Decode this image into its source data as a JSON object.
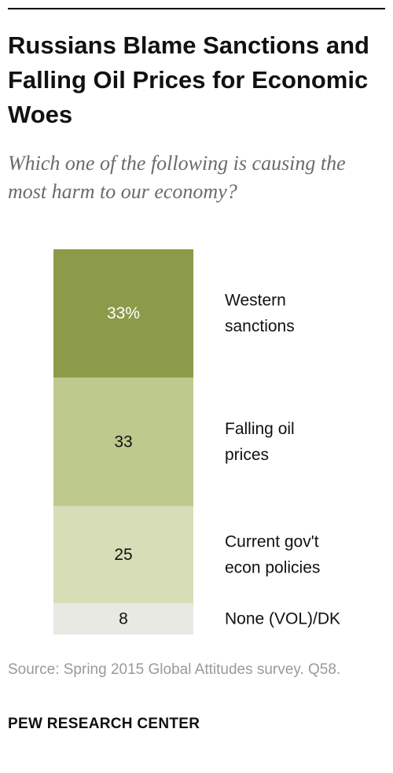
{
  "title": "Russians Blame Sanctions and Falling Oil Prices for Economic Woes",
  "subtitle": "Which one of the following is causing the most harm to our economy?",
  "source": "Source: Spring 2015 Global Attitudes survey. Q58.",
  "footer": "PEW RESEARCH CENTER",
  "chart_data": {
    "type": "bar",
    "stacked": true,
    "orientation": "vertical-stack",
    "categories": [
      "Western sanctions",
      "Falling oil prices",
      "Current gov't econ policies",
      "None (VOL)/DK"
    ],
    "category_lines": [
      [
        "Western",
        "sanctions"
      ],
      [
        "Falling oil",
        "prices"
      ],
      [
        "Current gov't",
        "econ policies"
      ],
      [
        "None (VOL)/DK"
      ]
    ],
    "values": [
      33,
      33,
      25,
      8
    ],
    "value_labels": [
      "33%",
      "33",
      "25",
      "8"
    ],
    "colors": [
      "#8c9b4a",
      "#bec98d",
      "#d7deb7",
      "#e9e9e3"
    ],
    "label_colors": [
      "#ffffff",
      "#111111",
      "#111111",
      "#111111"
    ]
  }
}
